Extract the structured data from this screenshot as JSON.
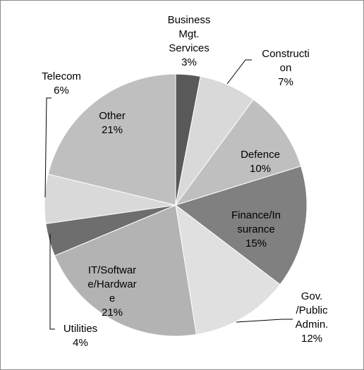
{
  "chart_data": {
    "type": "pie",
    "title": "",
    "slices": [
      {
        "label": "Business Mgt. Services",
        "label_lines": [
          "Business",
          "Mgt.",
          "Services"
        ],
        "value": 3,
        "value_text": "3%",
        "color": "#595959"
      },
      {
        "label": "Construction",
        "label_lines": [
          "Constructi",
          "on"
        ],
        "value": 7,
        "value_text": "7%",
        "color": "#d9d9d9"
      },
      {
        "label": "Defence",
        "label_lines": [
          "Defence"
        ],
        "value": 10,
        "value_text": "10%",
        "color": "#bfbfbf"
      },
      {
        "label": "Finance/Insurance",
        "label_lines": [
          "Finance/In",
          "surance"
        ],
        "value": 15,
        "value_text": "15%",
        "color": "#808080"
      },
      {
        "label": "Gov./Public Admin.",
        "label_lines": [
          "Gov.",
          "/Public",
          "Admin."
        ],
        "value": 12,
        "value_text": "12%",
        "color": "#e0e0e0"
      },
      {
        "label": "IT/Software/Hardware",
        "label_lines": [
          "IT/Softwar",
          "e/Hardwar",
          "e"
        ],
        "value": 21,
        "value_text": "21%",
        "color": "#b3b3b3"
      },
      {
        "label": "Utilities",
        "label_lines": [
          "Utilities"
        ],
        "value": 4,
        "value_text": "4%",
        "color": "#6e6e6e"
      },
      {
        "label": "Telecom",
        "label_lines": [
          "Telecom"
        ],
        "value": 6,
        "value_text": "6%",
        "color": "#d9d9d9"
      },
      {
        "label": "Other",
        "label_lines": [
          "Other"
        ],
        "value": 21,
        "value_text": "21%",
        "color": "#bfbfbf"
      }
    ],
    "start_angle_deg": 0,
    "direction": "clockwise",
    "legend": "none",
    "grid": false
  }
}
